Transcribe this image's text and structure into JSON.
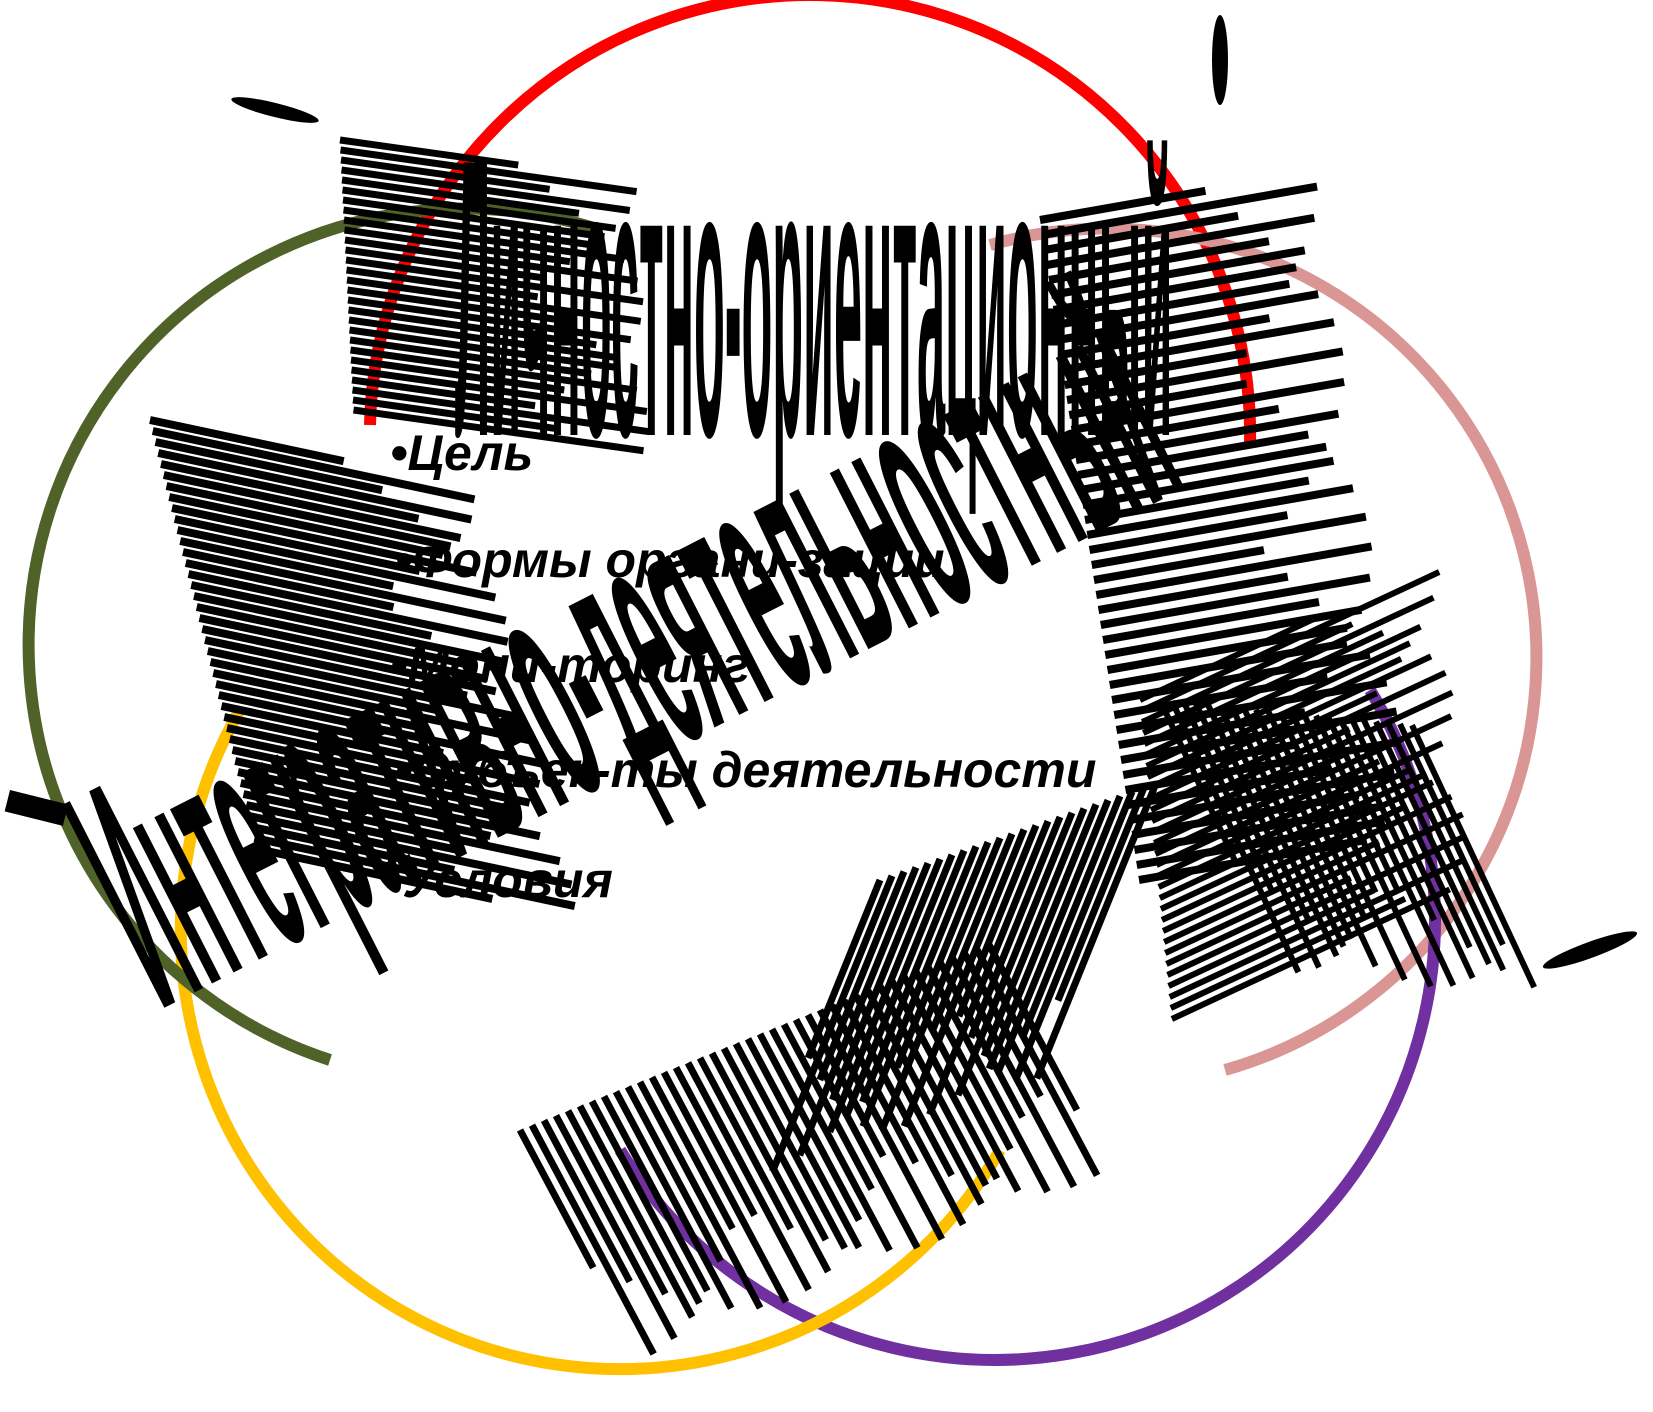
{
  "colors": {
    "circle_top": "#ff0000",
    "circle_right": "#d99694",
    "circle_left": "#4f6228",
    "circle_bottom_left": "#ffc000",
    "circle_bottom_right": "#7030a0",
    "ink": "#000000"
  },
  "circles": [
    {
      "name": "top",
      "label": "Личностно-ориентационный"
    },
    {
      "name": "right",
      "label": ""
    },
    {
      "name": "bottom-right",
      "label": ""
    },
    {
      "name": "bottom-left",
      "label": "Интегративно-деятельностный"
    },
    {
      "name": "left",
      "label": ""
    }
  ],
  "center_list": [
    "•Цель",
    "•Формы органи-зации",
    "•Мони-торинг",
    "•Субъек-ты деятельности",
    "•Условия"
  ]
}
